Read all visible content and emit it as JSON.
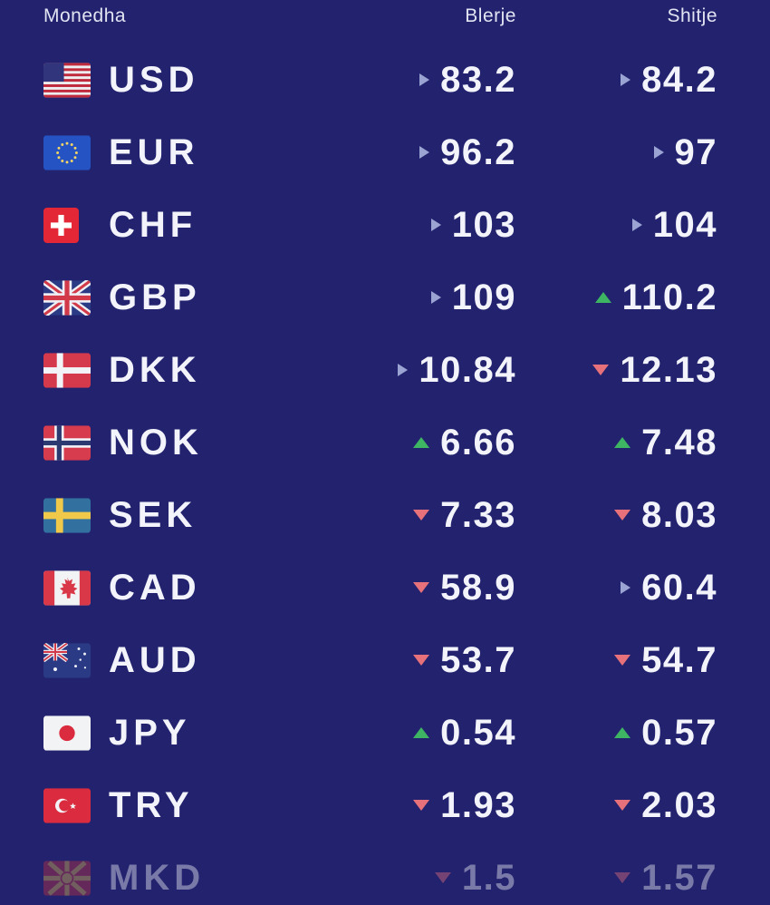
{
  "colors": {
    "background": "#22226e",
    "text": "#f3f4fb",
    "header_text": "#e2e4f2",
    "trend_up": "#3eb563",
    "trend_down": "#e7717b",
    "trend_steady": "#9ba3d3"
  },
  "table": {
    "headers": {
      "currency": "Monedha",
      "buy": "Blerje",
      "sell": "Shitje"
    },
    "rows": [
      {
        "code": "USD",
        "flag": "us",
        "buy": "83.2",
        "buy_trend": "steady",
        "sell": "84.2",
        "sell_trend": "steady",
        "faded": false
      },
      {
        "code": "EUR",
        "flag": "eu",
        "buy": "96.2",
        "buy_trend": "steady",
        "sell": "97",
        "sell_trend": "steady",
        "faded": false
      },
      {
        "code": "CHF",
        "flag": "ch",
        "buy": "103",
        "buy_trend": "steady",
        "sell": "104",
        "sell_trend": "steady",
        "faded": false
      },
      {
        "code": "GBP",
        "flag": "gb",
        "buy": "109",
        "buy_trend": "steady",
        "sell": "110.2",
        "sell_trend": "up",
        "faded": false
      },
      {
        "code": "DKK",
        "flag": "dk",
        "buy": "10.84",
        "buy_trend": "steady",
        "sell": "12.13",
        "sell_trend": "down",
        "faded": false
      },
      {
        "code": "NOK",
        "flag": "no",
        "buy": "6.66",
        "buy_trend": "up",
        "sell": "7.48",
        "sell_trend": "up",
        "faded": false
      },
      {
        "code": "SEK",
        "flag": "se",
        "buy": "7.33",
        "buy_trend": "down",
        "sell": "8.03",
        "sell_trend": "down",
        "faded": false
      },
      {
        "code": "CAD",
        "flag": "ca",
        "buy": "58.9",
        "buy_trend": "down",
        "sell": "60.4",
        "sell_trend": "steady",
        "faded": false
      },
      {
        "code": "AUD",
        "flag": "au",
        "buy": "53.7",
        "buy_trend": "down",
        "sell": "54.7",
        "sell_trend": "down",
        "faded": false
      },
      {
        "code": "JPY",
        "flag": "jp",
        "buy": "0.54",
        "buy_trend": "up",
        "sell": "0.57",
        "sell_trend": "up",
        "faded": false
      },
      {
        "code": "TRY",
        "flag": "tr",
        "buy": "1.93",
        "buy_trend": "down",
        "sell": "2.03",
        "sell_trend": "down",
        "faded": false
      },
      {
        "code": "MKD",
        "flag": "mk",
        "buy": "1.5",
        "buy_trend": "down",
        "sell": "1.57",
        "sell_trend": "down",
        "faded": true
      }
    ]
  }
}
